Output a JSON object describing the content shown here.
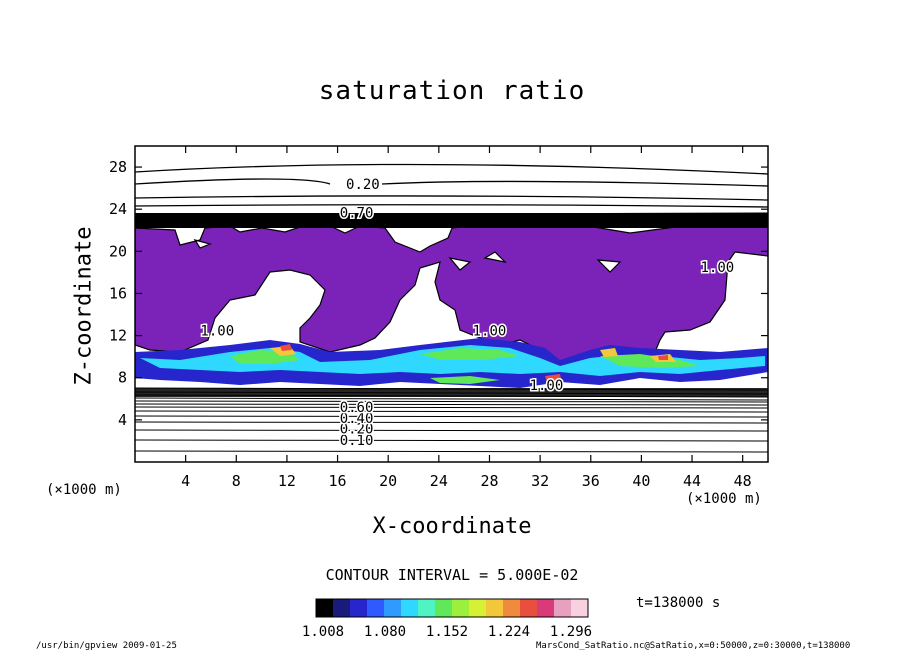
{
  "chart_data": {
    "type": "contour",
    "title": "saturation ratio",
    "xlabel": "X-coordinate",
    "ylabel": "Z-coordinate",
    "x_unit": "(×1000 m)",
    "xlim": [
      0,
      50
    ],
    "ylim": [
      0,
      30
    ],
    "x_ticks": [
      4,
      8,
      12,
      16,
      20,
      24,
      28,
      32,
      36,
      40,
      44,
      48
    ],
    "y_ticks": [
      4,
      8,
      12,
      16,
      20,
      24,
      28
    ],
    "contour_interval": "CONTOUR INTERVAL = 5.000E-02",
    "contour_labels": [
      {
        "text": "0.20",
        "x": 18,
        "z": 26.4
      },
      {
        "text": "0.10",
        "x": 17.5,
        "z": 2.1
      },
      {
        "text": "0.20",
        "x": 17.5,
        "z": 3.2
      },
      {
        "text": "0.40",
        "x": 17.5,
        "z": 4.2
      },
      {
        "text": "0.60",
        "x": 17.5,
        "z": 5.2
      },
      {
        "text": "0.70",
        "x": 17.5,
        "z": 23.7
      },
      {
        "text": "1.00",
        "x": 6.5,
        "z": 12.5
      },
      {
        "text": "1.00",
        "x": 28,
        "z": 12.5
      },
      {
        "text": "1.00",
        "x": 32.5,
        "z": 7.3
      },
      {
        "text": "1.00",
        "x": 46,
        "z": 18.5
      }
    ],
    "colorbar": {
      "ticks": [
        "1.008",
        "1.080",
        "1.152",
        "1.224",
        "1.296"
      ],
      "colors": [
        "#000000",
        "#1a1a7a",
        "#2626cc",
        "#2e5aff",
        "#2f9bff",
        "#2fd8ff",
        "#4ef5c2",
        "#5fe85a",
        "#9cf03b",
        "#d6f035",
        "#f2c83a",
        "#f08a3c",
        "#e8503d",
        "#d83a7a",
        "#e8a0c0",
        "#f8d0e0"
      ]
    },
    "time": "t=138000 s"
  },
  "footer": {
    "left": "/usr/bin/gpview  2009-01-25",
    "right": "MarsCond_SatRatio.nc@SatRatio,x=0:50000,z=0:30000,t=138000"
  }
}
